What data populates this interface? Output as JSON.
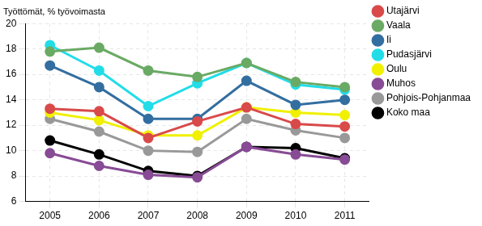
{
  "chart_data": {
    "type": "line",
    "title": "Työttömät, % työvoimasta",
    "categories": [
      "2005",
      "2006",
      "2007",
      "2008",
      "2009",
      "2010",
      "2011"
    ],
    "series": [
      {
        "name": "Utajärvi",
        "color": "#d94a4a",
        "values": [
          13.3,
          13.1,
          11.0,
          12.3,
          13.4,
          12.1,
          11.9
        ]
      },
      {
        "name": "Vaala",
        "color": "#6aaa64",
        "values": [
          17.8,
          18.1,
          16.3,
          15.8,
          16.9,
          15.4,
          15.0
        ]
      },
      {
        "name": "Ii",
        "color": "#336ea0",
        "values": [
          16.7,
          15.0,
          12.5,
          12.5,
          15.5,
          13.6,
          14.0
        ]
      },
      {
        "name": "Pudasjärvi",
        "color": "#22dde8",
        "values": [
          18.3,
          16.3,
          13.5,
          15.3,
          16.9,
          15.2,
          14.8
        ]
      },
      {
        "name": "Oulu",
        "color": "#f0f000",
        "values": [
          13.0,
          12.4,
          11.2,
          11.2,
          13.4,
          13.0,
          12.8
        ]
      },
      {
        "name": "Muhos",
        "color": "#884b95",
        "values": [
          9.8,
          8.8,
          8.1,
          7.9,
          10.3,
          9.7,
          9.3
        ]
      },
      {
        "name": "Pohjois-Pohjanmaa",
        "color": "#999999",
        "values": [
          12.5,
          11.5,
          10.0,
          9.9,
          12.5,
          11.6,
          11.0
        ]
      },
      {
        "name": "Koko maa",
        "color": "#000000",
        "values": [
          10.8,
          9.7,
          8.4,
          8.0,
          10.3,
          10.2,
          9.4
        ]
      }
    ],
    "ylim": [
      6,
      20
    ],
    "yticks": [
      6,
      8,
      10,
      12,
      14,
      16,
      18,
      20
    ],
    "grid": true,
    "legend": "right",
    "marker": "circle"
  }
}
